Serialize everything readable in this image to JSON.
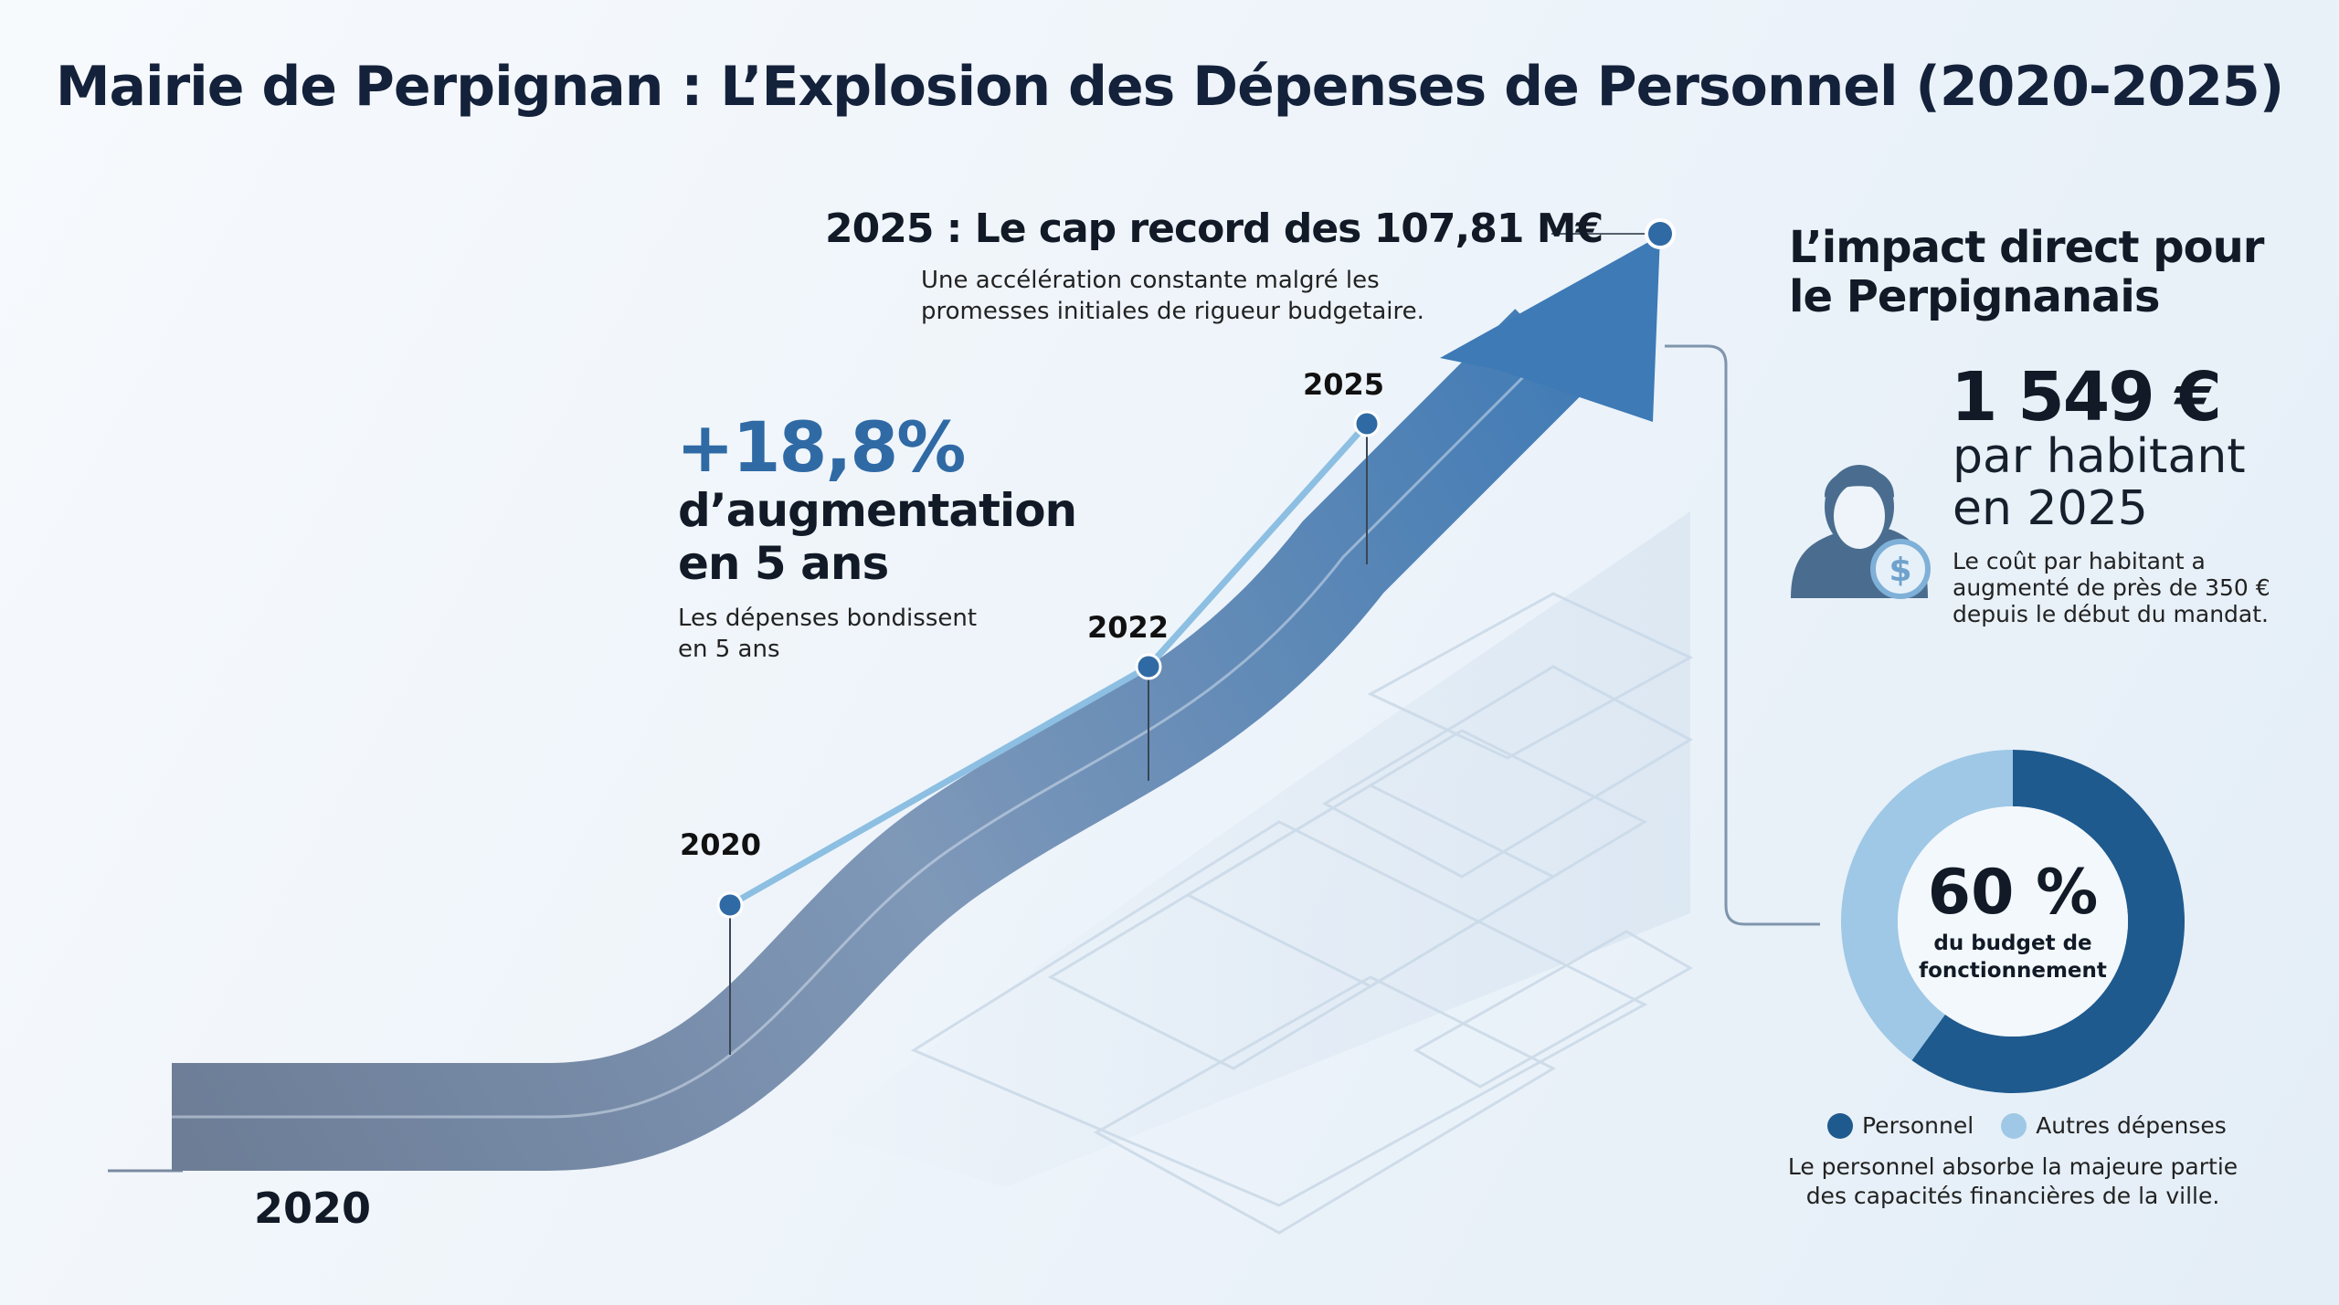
{
  "title": "Mairie de Perpignan : L’Explosion des Dépenses de Personnel (2020-2025)",
  "headline": {
    "title": "2025 : Le cap record des 107,81 M€",
    "subtitle_line1": "Une accélération constante malgré les",
    "subtitle_line2": "promesses initiales de rigueur budgetaire."
  },
  "growth": {
    "value": "+18,8%",
    "label_line1": "d’augmentation",
    "label_line2": "en 5 ans",
    "sub_line1": "Les dépenses bondissent",
    "sub_line2": "en 5 ans"
  },
  "timeline": {
    "years": [
      "2020",
      "2022",
      "2025"
    ],
    "base_year": "2020"
  },
  "impact": {
    "title_line1": "L’impact direct pour",
    "title_line2": "le Perpignanais",
    "amount": "1 549 €",
    "per_line1": "par habitant",
    "per_line2": "en 2025",
    "note_line1": "Le coût par habitant a",
    "note_line2": "augmenté de près de 350 €",
    "note_line3": "depuis le début du mandat.",
    "icons": [
      "person-icon",
      "dollar-coin-icon"
    ]
  },
  "donut": {
    "center_value": "60 %",
    "center_line1": "du budget de",
    "center_line2": "fonctionnement",
    "caption_line1": "Le personnel absorbe la majeure partie",
    "caption_line2": "des capacités financières de la ville."
  },
  "colors": {
    "primary": "#2f6aa5",
    "dark": "#1e5a8e",
    "light": "#9ec8e6",
    "arrow_start": "#6d7d96"
  },
  "chart_data": {
    "type": "pie",
    "donut": true,
    "categories": [
      "Personnel",
      "Autres dépenses"
    ],
    "values": [
      60,
      40
    ],
    "colors": [
      "#1e5a8e",
      "#9ec8e6"
    ],
    "legend_position": "bottom"
  }
}
